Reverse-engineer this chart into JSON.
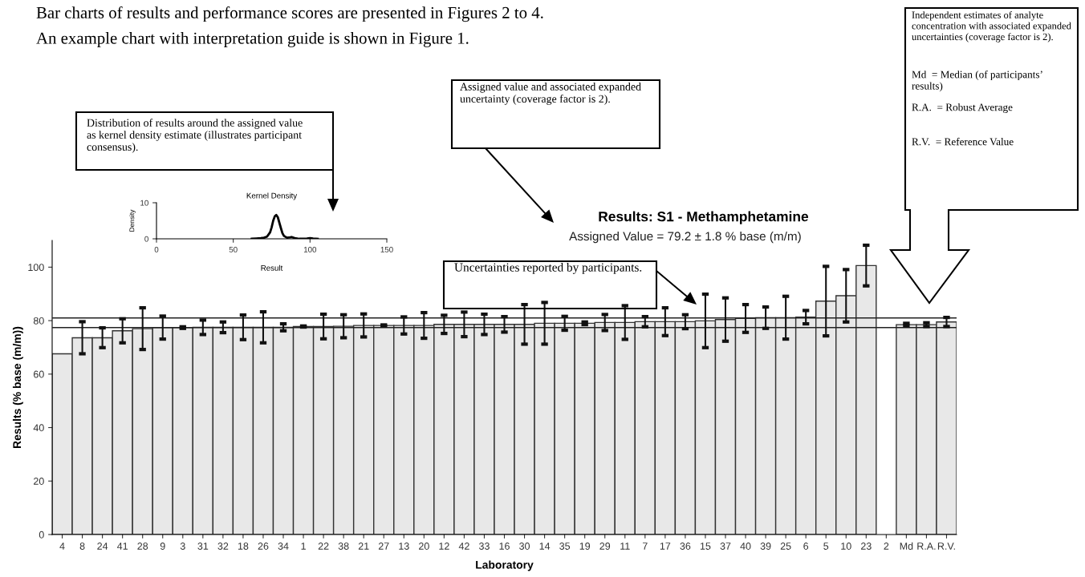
{
  "chart_data": [
    {
      "type": "bar",
      "title": "Results: S1 - Methamphetamine",
      "subtitle": "Assigned Value = 79.2 ± 1.8 % base (m/m)",
      "xlabel": "Laboratory",
      "ylabel": "Results (% base (m/m))",
      "categories": [
        "4",
        "8",
        "24",
        "41",
        "28",
        "9",
        "3",
        "31",
        "32",
        "18",
        "26",
        "34",
        "1",
        "22",
        "38",
        "21",
        "27",
        "13",
        "20",
        "12",
        "42",
        "33",
        "16",
        "30",
        "14",
        "35",
        "19",
        "29",
        "11",
        "7",
        "17",
        "36",
        "15",
        "37",
        "40",
        "39",
        "25",
        "6",
        "5",
        "10",
        "23",
        "2",
        "Md",
        "R.A.",
        "R.V."
      ],
      "values": [
        67.6,
        73.6,
        73.6,
        76.2,
        77.0,
        77.4,
        77.4,
        77.5,
        77.5,
        77.5,
        77.5,
        77.5,
        77.8,
        77.8,
        77.9,
        78.2,
        78.2,
        78.2,
        78.2,
        78.6,
        78.6,
        78.6,
        78.6,
        78.6,
        79.0,
        79.0,
        79.0,
        79.3,
        79.3,
        79.6,
        79.6,
        79.6,
        79.9,
        80.4,
        80.8,
        81.1,
        81.1,
        81.3,
        87.3,
        89.3,
        100.6,
        null,
        78.5,
        78.5,
        79.5
      ],
      "errors": [
        null,
        6.0,
        3.7,
        4.5,
        7.8,
        4.3,
        0.3,
        2.7,
        2.0,
        4.6,
        5.8,
        1.3,
        0.2,
        4.6,
        4.3,
        4.3,
        0.2,
        3.2,
        4.8,
        3.4,
        4.6,
        3.8,
        2.9,
        7.4,
        7.8,
        2.6,
        0.5,
        3.0,
        6.3,
        1.9,
        5.2,
        2.6,
        10.0,
        8.1,
        5.2,
        4.0,
        8.0,
        2.5,
        13.0,
        9.8,
        7.6,
        null,
        0.5,
        0.7,
        1.7
      ],
      "color": "#e8e8e8",
      "ylim": [
        0,
        110
      ],
      "yticks": [
        0,
        20,
        40,
        60,
        80,
        100
      ],
      "ref_lines": [
        {
          "axis": "y",
          "value": 81.0
        },
        {
          "axis": "y",
          "value": 77.4
        }
      ],
      "annotations": [
        "Bar charts of results and performance scores are presented in Figures 2 to 4.",
        "An example chart with interpretation guide is shown in Figure 1.",
        "Distribution of results around the assigned value as kernel density estimate (illustrates participant consensus).",
        "Assigned value and associated expanded uncertainty (coverage factor is 2).",
        "Uncertainties reported by participants.",
        "Independent estimates of analyte concentration with associated expanded uncertainties (coverage factor is 2).",
        "Md  = Median (of participants’ results)",
        "R.A.  = Robust Average",
        "R.V.  = Reference Value"
      ]
    },
    {
      "type": "line",
      "title": "Kernel Density",
      "xlabel": "Result",
      "ylabel": "Density",
      "x": [
        62,
        65,
        68,
        70,
        72,
        74,
        75,
        76,
        77,
        78,
        79,
        80,
        81,
        82,
        83,
        85,
        87,
        88,
        90,
        93,
        95,
        98,
        100,
        102,
        105
      ],
      "values": [
        0,
        0.1,
        0.2,
        0.3,
        0.6,
        1.8,
        3.2,
        5.0,
        6.2,
        6.6,
        6.0,
        4.5,
        3.0,
        1.6,
        0.8,
        0.3,
        0.4,
        0.5,
        0.2,
        0,
        0,
        0.1,
        0.2,
        0.1,
        0
      ],
      "color": "#000000",
      "xlim": [
        0,
        150
      ],
      "xticks": [
        0,
        50,
        100,
        150
      ],
      "ylim": [
        0,
        10
      ],
      "yticks": [
        0,
        10
      ]
    }
  ]
}
